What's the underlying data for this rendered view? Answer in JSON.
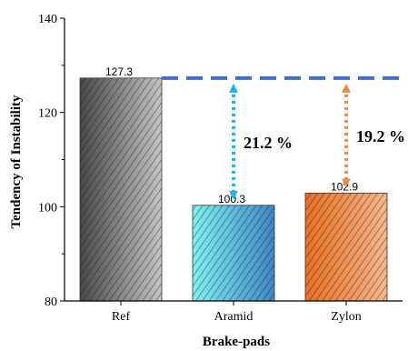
{
  "chart_data": {
    "type": "bar",
    "title": "",
    "xlabel": "Brake-pads",
    "ylabel": "Tendency of Instability",
    "ylim": [
      80,
      140
    ],
    "yticks": [
      80,
      100,
      120,
      140
    ],
    "grid": false,
    "categories": [
      "Ref",
      "Aramid",
      "Zylon"
    ],
    "values": [
      127.3,
      100.3,
      102.9
    ],
    "value_labels": [
      "127.3",
      "100.3",
      "102.9"
    ],
    "bar_colors": {
      "Ref": [
        "#4a4a4a",
        "#c4c4c4"
      ],
      "Aramid": [
        "#7ff0f0",
        "#3f86c4"
      ],
      "Zylon": [
        "#e86f24",
        "#f4b68c"
      ]
    },
    "bar_pattern": "diagonal-hatch",
    "reference_line": {
      "value": 127.3,
      "color": "#3f6fcf",
      "style": "dashed"
    },
    "annotations": [
      {
        "category": "Aramid",
        "from": 127.3,
        "to": 100.3,
        "text": "21.2 %",
        "color": "#1fb3e8"
      },
      {
        "category": "Zylon",
        "from": 127.3,
        "to": 102.9,
        "text": "19.2 %",
        "color": "#ef8a45"
      }
    ]
  }
}
